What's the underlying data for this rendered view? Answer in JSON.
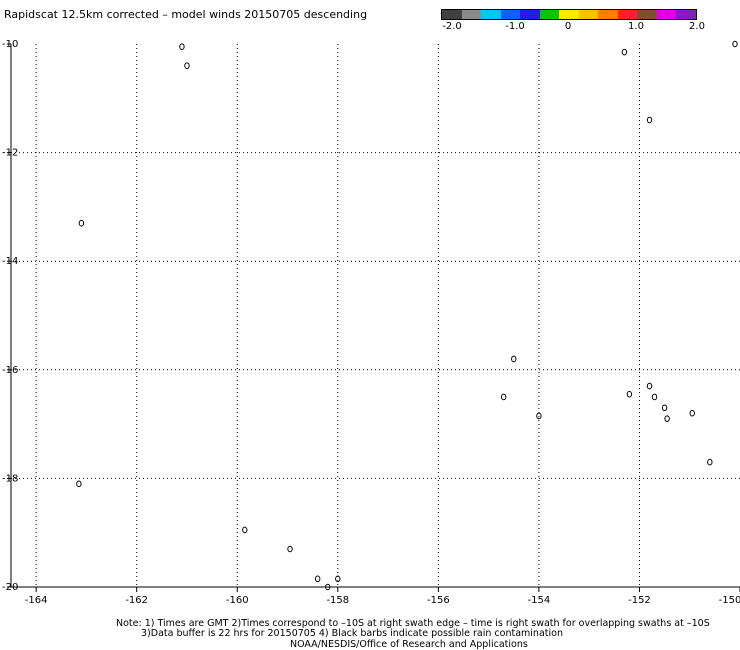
{
  "title": "Rapidscat 12.5km corrected – model winds 20150705 descending",
  "colorbar": {
    "colors": [
      "#404040",
      "#8a8a8a",
      "#00c8ff",
      "#0064ff",
      "#2020e0",
      "#10c010",
      "#ffe800",
      "#ffc000",
      "#ff7f00",
      "#ff2020",
      "#8a4a2a",
      "#e000e0",
      "#8020c0"
    ],
    "labels": [
      "-2.0",
      "-1.0",
      "0",
      "1.0",
      "2.0"
    ]
  },
  "map": {
    "lon_ticks": [
      "-164",
      "-162",
      "-160",
      "-158",
      "-156",
      "-154",
      "-152",
      "-150"
    ],
    "lat_ticks": [
      "-10",
      "-12",
      "-14",
      "-16",
      "-18",
      "-20"
    ],
    "lon_range": [
      -164.5,
      -150
    ],
    "lat_range": [
      -20,
      -10
    ],
    "grid": true,
    "grid_style": "dotted",
    "islands": [
      {
        "lon": -161.1,
        "lat": -10.05
      },
      {
        "lon": -161.0,
        "lat": -10.4
      },
      {
        "lon": -152.3,
        "lat": -10.15
      },
      {
        "lon": -150.1,
        "lat": -10.0
      },
      {
        "lon": -151.8,
        "lat": -11.4
      },
      {
        "lon": -163.1,
        "lat": -13.3
      },
      {
        "lon": -154.5,
        "lat": -15.8
      },
      {
        "lon": -154.7,
        "lat": -16.5
      },
      {
        "lon": -154.0,
        "lat": -16.85
      },
      {
        "lon": -152.2,
        "lat": -16.45
      },
      {
        "lon": -151.8,
        "lat": -16.3
      },
      {
        "lon": -151.7,
        "lat": -16.5
      },
      {
        "lon": -151.5,
        "lat": -16.7
      },
      {
        "lon": -151.45,
        "lat": -16.9
      },
      {
        "lon": -150.95,
        "lat": -16.8
      },
      {
        "lon": -150.6,
        "lat": -17.7
      },
      {
        "lon": -163.15,
        "lat": -18.1
      },
      {
        "lon": -159.85,
        "lat": -18.95
      },
      {
        "lon": -158.95,
        "lat": -19.3
      },
      {
        "lon": -158.4,
        "lat": -19.85
      },
      {
        "lon": -158.0,
        "lat": -19.85
      },
      {
        "lon": -158.2,
        "lat": -20.0
      }
    ]
  },
  "footer": {
    "line1": "Note: 1) Times are GMT 2)Times correspond to –10S at right swath edge – time is right swath for overlapping swaths at –10S",
    "line2": "3)Data buffer is 22 hrs for 20150705 4) Black barbs indicate possible rain contamination",
    "line3": "NOAA/NESDIS/Office of Research and Applications"
  }
}
